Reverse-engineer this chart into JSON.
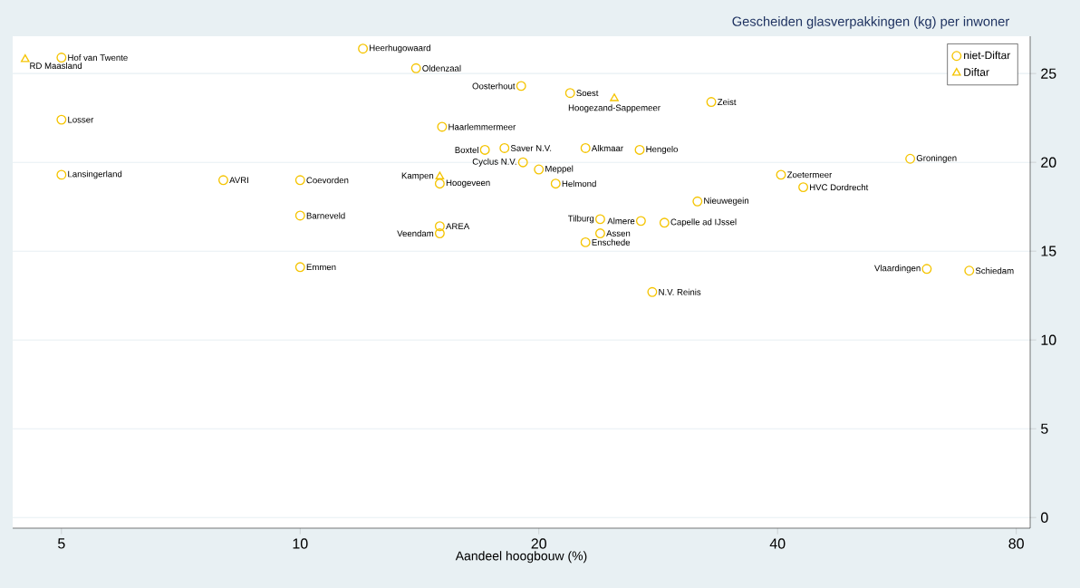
{
  "chart_data": {
    "type": "scatter",
    "ylabel": "Gescheiden glasverpakkingen (kg) per inwoner",
    "xlabel": "Aandeel hoogbouw (%)",
    "log": "x",
    "xlim": [
      4.34,
      83.3
    ],
    "xticks": [
      5,
      10,
      20,
      40,
      80
    ],
    "ylim": [
      -0.6,
      27.1
    ],
    "yticks": [
      0,
      5,
      10,
      15,
      20,
      25
    ],
    "grid": "y",
    "legend": "top right",
    "series": [
      {
        "name": "niet-Diftar",
        "color": "#f5c400",
        "marker": "circle",
        "x": [
          5,
          12.0,
          14.0,
          19.0,
          21.9,
          33.0,
          5,
          15.1,
          17.1,
          18.1,
          22.9,
          26.8,
          19.1,
          20,
          58.8,
          5,
          8.0,
          10.0,
          15.0,
          21.0,
          40.4,
          43.1,
          31.7,
          10,
          15,
          15,
          23.9,
          26.9,
          28.8,
          23.9,
          22.9,
          10,
          61.7,
          69.8,
          27.8
        ],
        "values": [
          25.9,
          26.4,
          25.3,
          24.3,
          23.9,
          23.4,
          22.4,
          22.0,
          20.7,
          20.8,
          20.8,
          20.7,
          20.0,
          19.6,
          20.2,
          19.3,
          19.0,
          19.0,
          18.8,
          18.8,
          19.3,
          18.6,
          17.8,
          17.0,
          16.4,
          16.0,
          16.8,
          16.7,
          16.6,
          16.0,
          15.5,
          14.1,
          14.0,
          13.9,
          12.7
        ],
        "value_labels": [
          "Hof van Twente",
          "Heerhugowaard",
          "Oldenzaal",
          "Oosterhout",
          "Soest",
          "Zeist",
          "Losser",
          "Haarlemmermeer",
          "Boxtel",
          "Saver N.V.",
          "Alkmaar",
          "Hengelo",
          "Cyclus N.V.",
          "Meppel",
          "Groningen",
          "Lansingerland",
          "AVRI",
          "Coevorden",
          "Hoogeveen",
          "Helmond",
          "Zoetermeer",
          "HVC Dordrecht",
          "Nieuwegein",
          "Barneveld",
          "AREA",
          "Veendam",
          "Tilburg",
          "Almere",
          "Capelle ad IJssel",
          "Assen",
          "Enschede",
          "Emmen",
          "Vlaardingen",
          "Schiedam",
          "N.V. Reinis"
        ]
      },
      {
        "name": "Diftar",
        "color": "#f5c400",
        "marker": "triangle",
        "x": [
          4.5,
          24.9,
          15.0
        ],
        "values": [
          25.8,
          23.6,
          19.2
        ],
        "value_labels": [
          "RD Maasland",
          "Hoogezand-Sappemeer",
          "Kampen"
        ]
      }
    ]
  }
}
